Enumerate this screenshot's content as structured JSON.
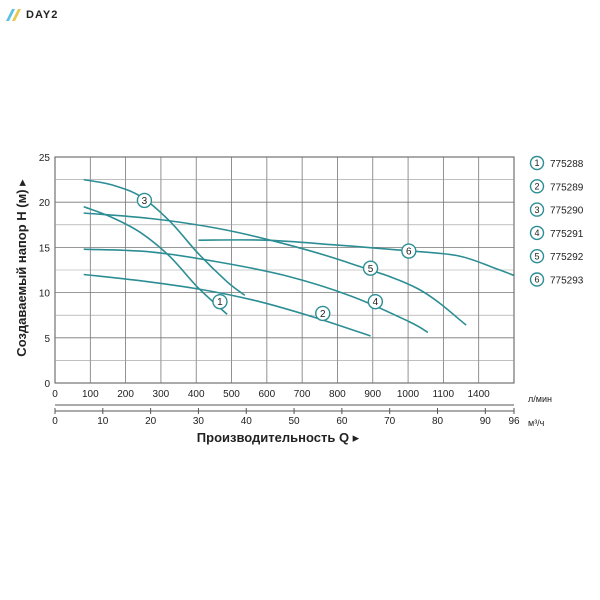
{
  "brand": {
    "logo_text": "DAY2",
    "logo_icon": "double-slash-logo",
    "colors": [
      "#5bbfe6",
      "#e8c74a"
    ]
  },
  "chart_data": {
    "type": "line",
    "title": "",
    "ylabel": "Создаваемый напор H (м) ▸",
    "xlabel": "Производительность Q ▸",
    "ylim": [
      0,
      25
    ],
    "y_ticks": [
      "0",
      "5",
      "10",
      "15",
      "20",
      "25"
    ],
    "grid": true,
    "x_axis_lpm": {
      "unit": "л/мин",
      "ticks": [
        "0",
        "100",
        "200",
        "300",
        "400",
        "500",
        "600",
        "700",
        "800",
        "900",
        "1000",
        "1100",
        "1400"
      ]
    },
    "x_axis_m3h": {
      "unit": "м³/ч",
      "xlim": [
        0,
        96
      ],
      "ticks": [
        "0",
        "10",
        "20",
        "30",
        "40",
        "50",
        "60",
        "70",
        "80",
        "90",
        "96"
      ]
    },
    "line_color": "#2c8e94",
    "legend_position": "right",
    "series": [
      {
        "name": "775288",
        "marker": "1",
        "label_at": [
          34.5,
          9.0
        ],
        "points": [
          [
            6,
            19.5
          ],
          [
            12,
            18.3
          ],
          [
            18,
            16.6
          ],
          [
            24,
            14.0
          ],
          [
            30,
            10.5
          ],
          [
            36,
            7.6
          ]
        ]
      },
      {
        "name": "775289",
        "marker": "2",
        "label_at": [
          56,
          7.7
        ],
        "points": [
          [
            6,
            12.0
          ],
          [
            18,
            11.3
          ],
          [
            30,
            10.4
          ],
          [
            42,
            9.1
          ],
          [
            54,
            7.3
          ],
          [
            66,
            5.2
          ]
        ]
      },
      {
        "name": "775290",
        "marker": "3",
        "label_at": [
          18.7,
          20.2
        ],
        "points": [
          [
            6,
            22.5
          ],
          [
            12,
            21.9
          ],
          [
            18,
            20.6
          ],
          [
            24,
            17.9
          ],
          [
            30,
            14.3
          ],
          [
            36,
            11.2
          ],
          [
            39.7,
            9.7
          ]
        ]
      },
      {
        "name": "775291",
        "marker": "4",
        "label_at": [
          67,
          9.0
        ],
        "points": [
          [
            6,
            14.8
          ],
          [
            20,
            14.5
          ],
          [
            34,
            13.4
          ],
          [
            48,
            11.9
          ],
          [
            62,
            9.6
          ],
          [
            74,
            6.8
          ],
          [
            78,
            5.6
          ]
        ]
      },
      {
        "name": "775292",
        "marker": "5",
        "label_at": [
          66,
          12.7
        ],
        "points": [
          [
            6,
            18.8
          ],
          [
            20,
            18.2
          ],
          [
            34,
            17.1
          ],
          [
            48,
            15.4
          ],
          [
            62,
            13.2
          ],
          [
            76,
            10.4
          ],
          [
            86,
            6.4
          ]
        ]
      },
      {
        "name": "775293",
        "marker": "6",
        "label_at": [
          74,
          14.6
        ],
        "points": [
          [
            30,
            15.8
          ],
          [
            44,
            15.8
          ],
          [
            58,
            15.3
          ],
          [
            72,
            14.7
          ],
          [
            84,
            14.1
          ],
          [
            92,
            12.7
          ],
          [
            96,
            11.9
          ]
        ]
      }
    ]
  }
}
